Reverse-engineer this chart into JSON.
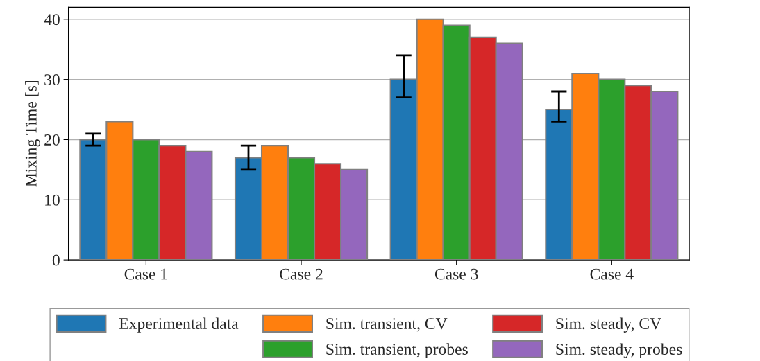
{
  "chart_data": {
    "type": "bar",
    "ylabel": "Mixing Time [s]",
    "categories": [
      "Case 1",
      "Case 2",
      "Case 3",
      "Case 4"
    ],
    "series": [
      {
        "name": "Experimental data",
        "color": "#1f77b4",
        "values": [
          20,
          17,
          30,
          25
        ],
        "errors": [
          [
            19,
            21
          ],
          [
            15,
            19
          ],
          [
            27,
            34
          ],
          [
            23,
            28
          ]
        ]
      },
      {
        "name": "Sim. transient, CV",
        "color": "#ff7f0e",
        "values": [
          23,
          19,
          40,
          31
        ]
      },
      {
        "name": "Sim. transient, probes",
        "color": "#2ca02c",
        "values": [
          20,
          17,
          39,
          30
        ]
      },
      {
        "name": "Sim. steady, CV",
        "color": "#d62728",
        "values": [
          19,
          16,
          37,
          29
        ]
      },
      {
        "name": "Sim. steady, probes",
        "color": "#9467bd",
        "values": [
          18,
          15,
          36,
          28
        ]
      }
    ],
    "ylim": [
      0,
      42
    ],
    "yticks": [
      0,
      10,
      20,
      30,
      40
    ],
    "grid": "y",
    "legend": "bottom"
  }
}
